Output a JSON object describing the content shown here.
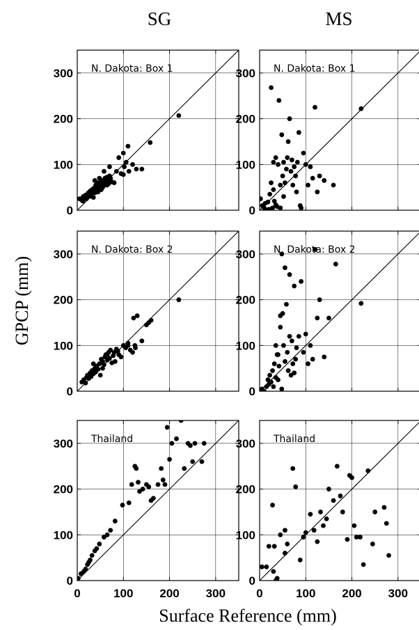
{
  "columns": [
    "SG",
    "MS"
  ],
  "xlabel": "Surface Reference (mm)",
  "ylabel": "GPCP (mm)",
  "ticks": [
    "0",
    "100",
    "200",
    "300"
  ],
  "chart_data": [
    {
      "type": "scatter",
      "column": "SG",
      "label": "N. Dakota: Box 1",
      "xlim": [
        0,
        350
      ],
      "ylim": [
        0,
        350
      ],
      "reference_line": "1:1",
      "x": [
        5,
        10,
        13,
        16,
        18,
        20,
        22,
        24,
        26,
        28,
        30,
        32,
        34,
        36,
        38,
        40,
        42,
        44,
        46,
        48,
        50,
        52,
        54,
        56,
        58,
        60,
        62,
        64,
        66,
        68,
        70,
        72,
        75,
        12,
        20,
        27,
        35,
        43,
        52,
        60,
        68,
        38,
        45,
        55,
        65,
        30,
        48,
        58,
        70,
        80,
        85,
        95,
        100,
        102,
        106,
        112,
        120,
        128,
        140,
        158,
        220,
        100,
        90,
        110
      ],
      "y": [
        25,
        22,
        30,
        27,
        33,
        25,
        35,
        38,
        30,
        42,
        32,
        45,
        40,
        48,
        38,
        55,
        52,
        45,
        60,
        58,
        50,
        62,
        56,
        65,
        60,
        70,
        68,
        72,
        65,
        58,
        75,
        70,
        62,
        20,
        28,
        35,
        28,
        40,
        45,
        55,
        60,
        65,
        40,
        50,
        55,
        35,
        70,
        85,
        95,
        60,
        85,
        80,
        78,
        95,
        105,
        85,
        100,
        90,
        90,
        148,
        207,
        125,
        115,
        140
      ]
    },
    {
      "type": "scatter",
      "column": "MS",
      "label": "N. Dakota: Box 1",
      "xlim": [
        0,
        350
      ],
      "ylim": [
        0,
        350
      ],
      "reference_line": "1:1",
      "x": [
        2,
        6,
        10,
        12,
        15,
        18,
        20,
        22,
        25,
        28,
        30,
        32,
        35,
        38,
        40,
        42,
        45,
        48,
        50,
        52,
        55,
        58,
        60,
        62,
        65,
        68,
        70,
        72,
        75,
        78,
        80,
        82,
        85,
        88,
        90,
        95,
        100,
        105,
        110,
        115,
        120,
        125,
        130,
        140,
        160,
        35,
        30,
        25,
        45,
        52,
        220
      ],
      "y": [
        25,
        10,
        5,
        15,
        0,
        18,
        2,
        35,
        60,
        5,
        45,
        20,
        12,
        8,
        100,
        240,
        55,
        165,
        75,
        105,
        60,
        90,
        115,
        150,
        200,
        85,
        110,
        55,
        95,
        75,
        40,
        105,
        170,
        10,
        5,
        125,
        100,
        55,
        95,
        70,
        225,
        40,
        75,
        65,
        55,
        115,
        105,
        268,
        5,
        30,
        222
      ]
    },
    {
      "type": "scatter",
      "column": "SG",
      "label": "N. Dakota: Box 2",
      "xlim": [
        0,
        350
      ],
      "ylim": [
        0,
        350
      ],
      "reference_line": "1:1",
      "x": [
        10,
        14,
        18,
        20,
        22,
        25,
        28,
        30,
        32,
        35,
        38,
        40,
        42,
        45,
        48,
        50,
        52,
        55,
        58,
        60,
        62,
        65,
        68,
        70,
        72,
        75,
        78,
        80,
        82,
        85,
        88,
        90,
        95,
        100,
        105,
        110,
        115,
        120,
        125,
        130,
        140,
        150,
        155,
        160,
        220,
        110,
        122,
        126,
        40,
        35,
        55,
        65
      ],
      "y": [
        20,
        25,
        18,
        30,
        35,
        28,
        40,
        32,
        45,
        38,
        50,
        42,
        55,
        48,
        60,
        35,
        70,
        65,
        58,
        75,
        80,
        68,
        85,
        72,
        90,
        62,
        78,
        85,
        65,
        92,
        88,
        80,
        75,
        100,
        95,
        105,
        90,
        85,
        100,
        165,
        110,
        145,
        150,
        155,
        200,
        100,
        160,
        95,
        45,
        60,
        50,
        80
      ]
    },
    {
      "type": "scatter",
      "column": "MS",
      "label": "N. Dakota: Box 2",
      "xlim": [
        0,
        350
      ],
      "ylim": [
        0,
        350
      ],
      "reference_line": "1:1",
      "x": [
        5,
        10,
        15,
        18,
        20,
        22,
        25,
        28,
        30,
        32,
        35,
        38,
        40,
        42,
        45,
        48,
        50,
        52,
        55,
        58,
        60,
        62,
        65,
        68,
        70,
        72,
        75,
        78,
        80,
        85,
        90,
        95,
        100,
        105,
        110,
        115,
        120,
        125,
        130,
        140,
        150,
        165,
        220,
        35,
        40,
        45,
        48,
        55,
        65,
        75
      ],
      "y": [
        5,
        0,
        10,
        25,
        15,
        35,
        20,
        45,
        10,
        60,
        30,
        80,
        25,
        55,
        140,
        5,
        170,
        100,
        65,
        190,
        85,
        45,
        120,
        35,
        110,
        60,
        40,
        70,
        95,
        120,
        240,
        85,
        125,
        60,
        100,
        70,
        310,
        160,
        200,
        75,
        160,
        278,
        192,
        100,
        80,
        165,
        300,
        270,
        255,
        230
      ]
    },
    {
      "type": "scatter",
      "column": "SG",
      "label": "Thailand",
      "xlim": [
        0,
        350
      ],
      "ylim": [
        0,
        350
      ],
      "reference_line": "1:1",
      "x": [
        2,
        8,
        14,
        18,
        22,
        25,
        28,
        32,
        38,
        42,
        48,
        58,
        65,
        72,
        82,
        98,
        112,
        118,
        125,
        128,
        132,
        135,
        142,
        150,
        155,
        160,
        165,
        175,
        182,
        186,
        190,
        195,
        200,
        205,
        215,
        225,
        232,
        240,
        245,
        250,
        255,
        270,
        275
      ],
      "y": [
        5,
        15,
        20,
        25,
        35,
        40,
        45,
        55,
        65,
        70,
        80,
        95,
        100,
        110,
        130,
        165,
        170,
        210,
        250,
        245,
        215,
        195,
        200,
        210,
        205,
        175,
        180,
        210,
        245,
        220,
        210,
        335,
        265,
        300,
        310,
        350,
        245,
        300,
        295,
        260,
        300,
        260,
        300
      ]
    },
    {
      "type": "scatter",
      "column": "MS",
      "label": "Thailand",
      "xlim": [
        0,
        350
      ],
      "ylim": [
        0,
        350
      ],
      "reference_line": "1:1",
      "x": [
        5,
        15,
        20,
        28,
        32,
        35,
        38,
        45,
        55,
        60,
        72,
        78,
        88,
        95,
        100,
        110,
        118,
        125,
        132,
        138,
        145,
        150,
        160,
        168,
        175,
        180,
        190,
        195,
        200,
        205,
        210,
        218,
        225,
        235,
        245,
        250,
        270,
        275,
        280,
        30,
        55
      ],
      "y": [
        30,
        30,
        75,
        165,
        75,
        0,
        5,
        100,
        60,
        80,
        245,
        205,
        45,
        95,
        105,
        145,
        110,
        85,
        150,
        120,
        135,
        200,
        175,
        250,
        185,
        150,
        90,
        230,
        225,
        120,
        95,
        95,
        35,
        240,
        80,
        150,
        160,
        125,
        55,
        20,
        110
      ]
    }
  ]
}
